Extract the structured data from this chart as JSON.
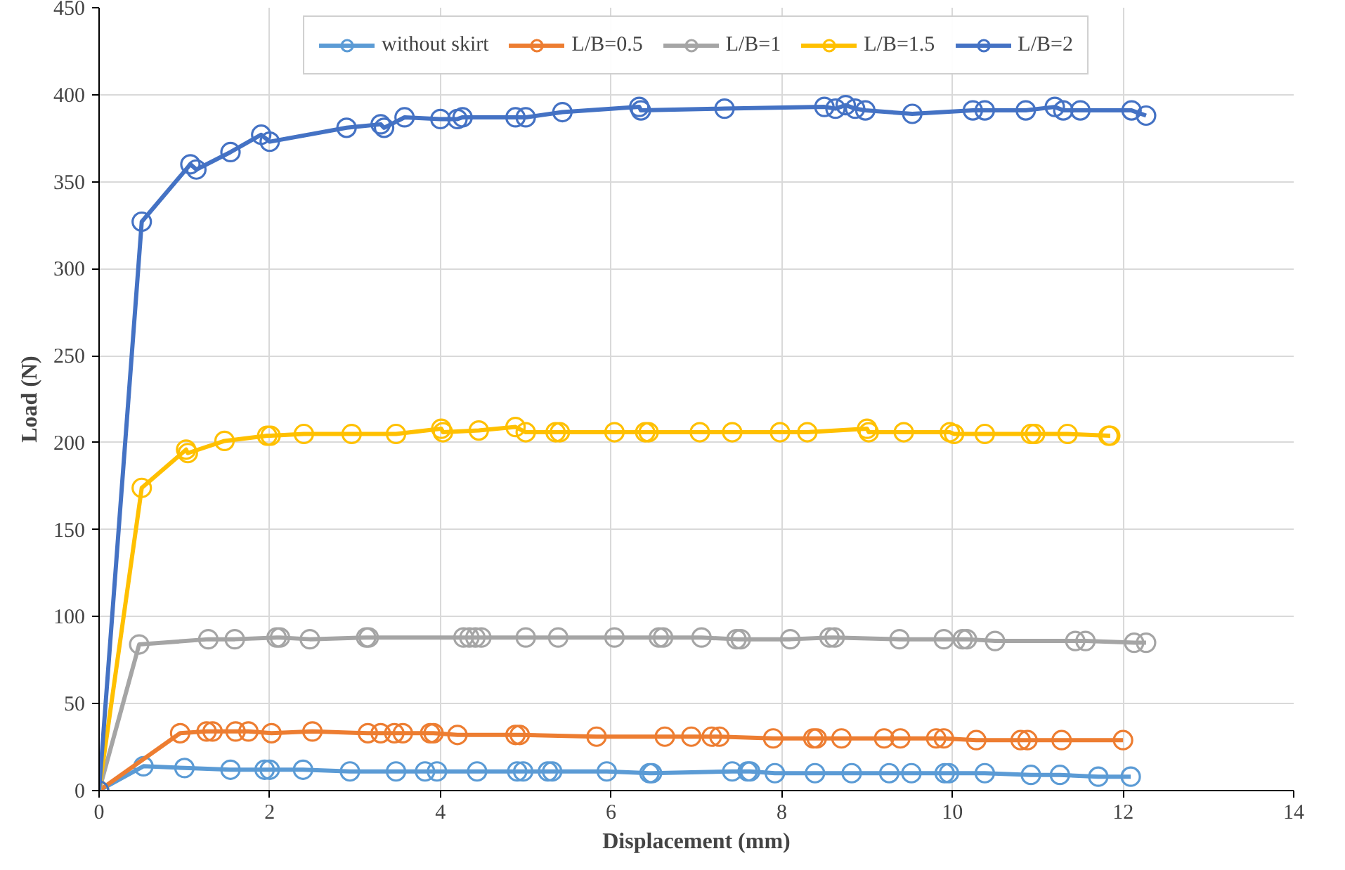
{
  "chart_data": {
    "type": "line",
    "xlabel": "Displacement (mm)",
    "ylabel": "Load (N)",
    "xlim": [
      0,
      14
    ],
    "xticks": [
      0,
      2,
      4,
      6,
      8,
      10,
      12,
      14
    ],
    "ylim": [
      0,
      450
    ],
    "yticks": [
      0,
      50,
      100,
      150,
      200,
      250,
      300,
      350,
      400,
      450
    ],
    "grid": true,
    "legend": "top",
    "marker": "circle",
    "line_style": "solid",
    "series": [
      {
        "name": "without skirt",
        "color": "#5b9bd5",
        "x": [
          0,
          0.52,
          1.0,
          1.54,
          1.94,
          2.0,
          2.39,
          2.94,
          3.48,
          3.82,
          3.96,
          4.43,
          4.9,
          4.97,
          5.26,
          5.31,
          5.95,
          6.45,
          6.48,
          7.42,
          7.6,
          7.63,
          7.92,
          8.39,
          8.82,
          9.26,
          9.52,
          9.91,
          9.96,
          10.38,
          10.92,
          11.26,
          11.71,
          12.09
        ],
        "values": [
          0,
          14,
          13,
          12,
          12,
          12,
          12,
          11,
          11,
          11,
          11,
          11,
          11,
          11,
          11,
          11,
          11,
          10,
          10,
          11,
          11,
          11,
          10,
          10,
          10,
          10,
          10,
          10,
          10,
          10,
          9,
          9,
          8,
          8
        ]
      },
      {
        "name": "L/B=0.5",
        "color": "#ed7d31",
        "x": [
          0,
          0.95,
          1.26,
          1.33,
          1.6,
          1.75,
          2.02,
          2.5,
          3.15,
          3.3,
          3.46,
          3.56,
          3.88,
          3.92,
          4.2,
          4.88,
          4.93,
          5.83,
          6.63,
          6.94,
          7.18,
          7.27,
          7.9,
          8.37,
          8.41,
          8.7,
          9.2,
          9.39,
          9.81,
          9.9,
          10.28,
          10.8,
          10.88,
          11.28,
          12.0
        ],
        "values": [
          0,
          33,
          34,
          34,
          34,
          34,
          33,
          34,
          33,
          33,
          33,
          33,
          33,
          33,
          32,
          32,
          32,
          31,
          31,
          31,
          31,
          31,
          30,
          30,
          30,
          30,
          30,
          30,
          30,
          30,
          29,
          29,
          29,
          29,
          29
        ]
      },
      {
        "name": "L/B=1",
        "color": "#a5a5a5",
        "x": [
          0,
          0.47,
          1.28,
          1.59,
          2.08,
          2.12,
          2.47,
          3.13,
          3.16,
          4.27,
          4.34,
          4.41,
          4.48,
          5.0,
          5.38,
          6.04,
          6.56,
          6.61,
          7.06,
          7.47,
          7.52,
          8.1,
          8.56,
          8.62,
          9.38,
          9.9,
          10.12,
          10.17,
          10.5,
          11.44,
          11.56,
          12.13,
          12.27
        ],
        "values": [
          0,
          84,
          87,
          87,
          88,
          88,
          87,
          88,
          88,
          88,
          88,
          88,
          88,
          88,
          88,
          88,
          88,
          88,
          88,
          87,
          87,
          87,
          88,
          88,
          87,
          87,
          87,
          87,
          86,
          86,
          86,
          85,
          85
        ]
      },
      {
        "name": "L/B=1.5",
        "color": "#ffc000",
        "x": [
          0,
          0.5,
          1.02,
          1.04,
          1.47,
          1.97,
          2.01,
          2.4,
          2.96,
          3.48,
          4.01,
          4.03,
          4.45,
          4.88,
          5.0,
          5.35,
          5.4,
          6.04,
          6.4,
          6.44,
          7.04,
          7.42,
          7.98,
          8.3,
          9.0,
          9.02,
          9.43,
          9.97,
          10.02,
          10.38,
          10.92,
          10.97,
          11.35,
          11.83,
          11.85
        ],
        "values": [
          0,
          174,
          196,
          194,
          201,
          204,
          204,
          205,
          205,
          205,
          208,
          206,
          207,
          209,
          206,
          206,
          206,
          206,
          206,
          206,
          206,
          206,
          206,
          206,
          208,
          206,
          206,
          206,
          205,
          205,
          205,
          205,
          205,
          204,
          204
        ]
      },
      {
        "name": "L/B=2",
        "color": "#4472c4",
        "x": [
          0,
          0.5,
          1.07,
          1.14,
          1.54,
          1.9,
          2.0,
          2.9,
          3.3,
          3.34,
          3.58,
          4.0,
          4.2,
          4.26,
          4.88,
          5.0,
          5.43,
          6.33,
          6.35,
          7.33,
          8.5,
          8.63,
          8.75,
          8.86,
          8.98,
          9.53,
          10.24,
          10.38,
          10.86,
          11.2,
          11.3,
          11.5,
          12.1,
          12.27
        ],
        "values": [
          0,
          327,
          360,
          357,
          367,
          377,
          373,
          381,
          383,
          381,
          387,
          386,
          386,
          387,
          387,
          387,
          390,
          393,
          391,
          392,
          393,
          392,
          394,
          392,
          391,
          389,
          391,
          391,
          391,
          393,
          391,
          391,
          391,
          388
        ]
      }
    ]
  }
}
